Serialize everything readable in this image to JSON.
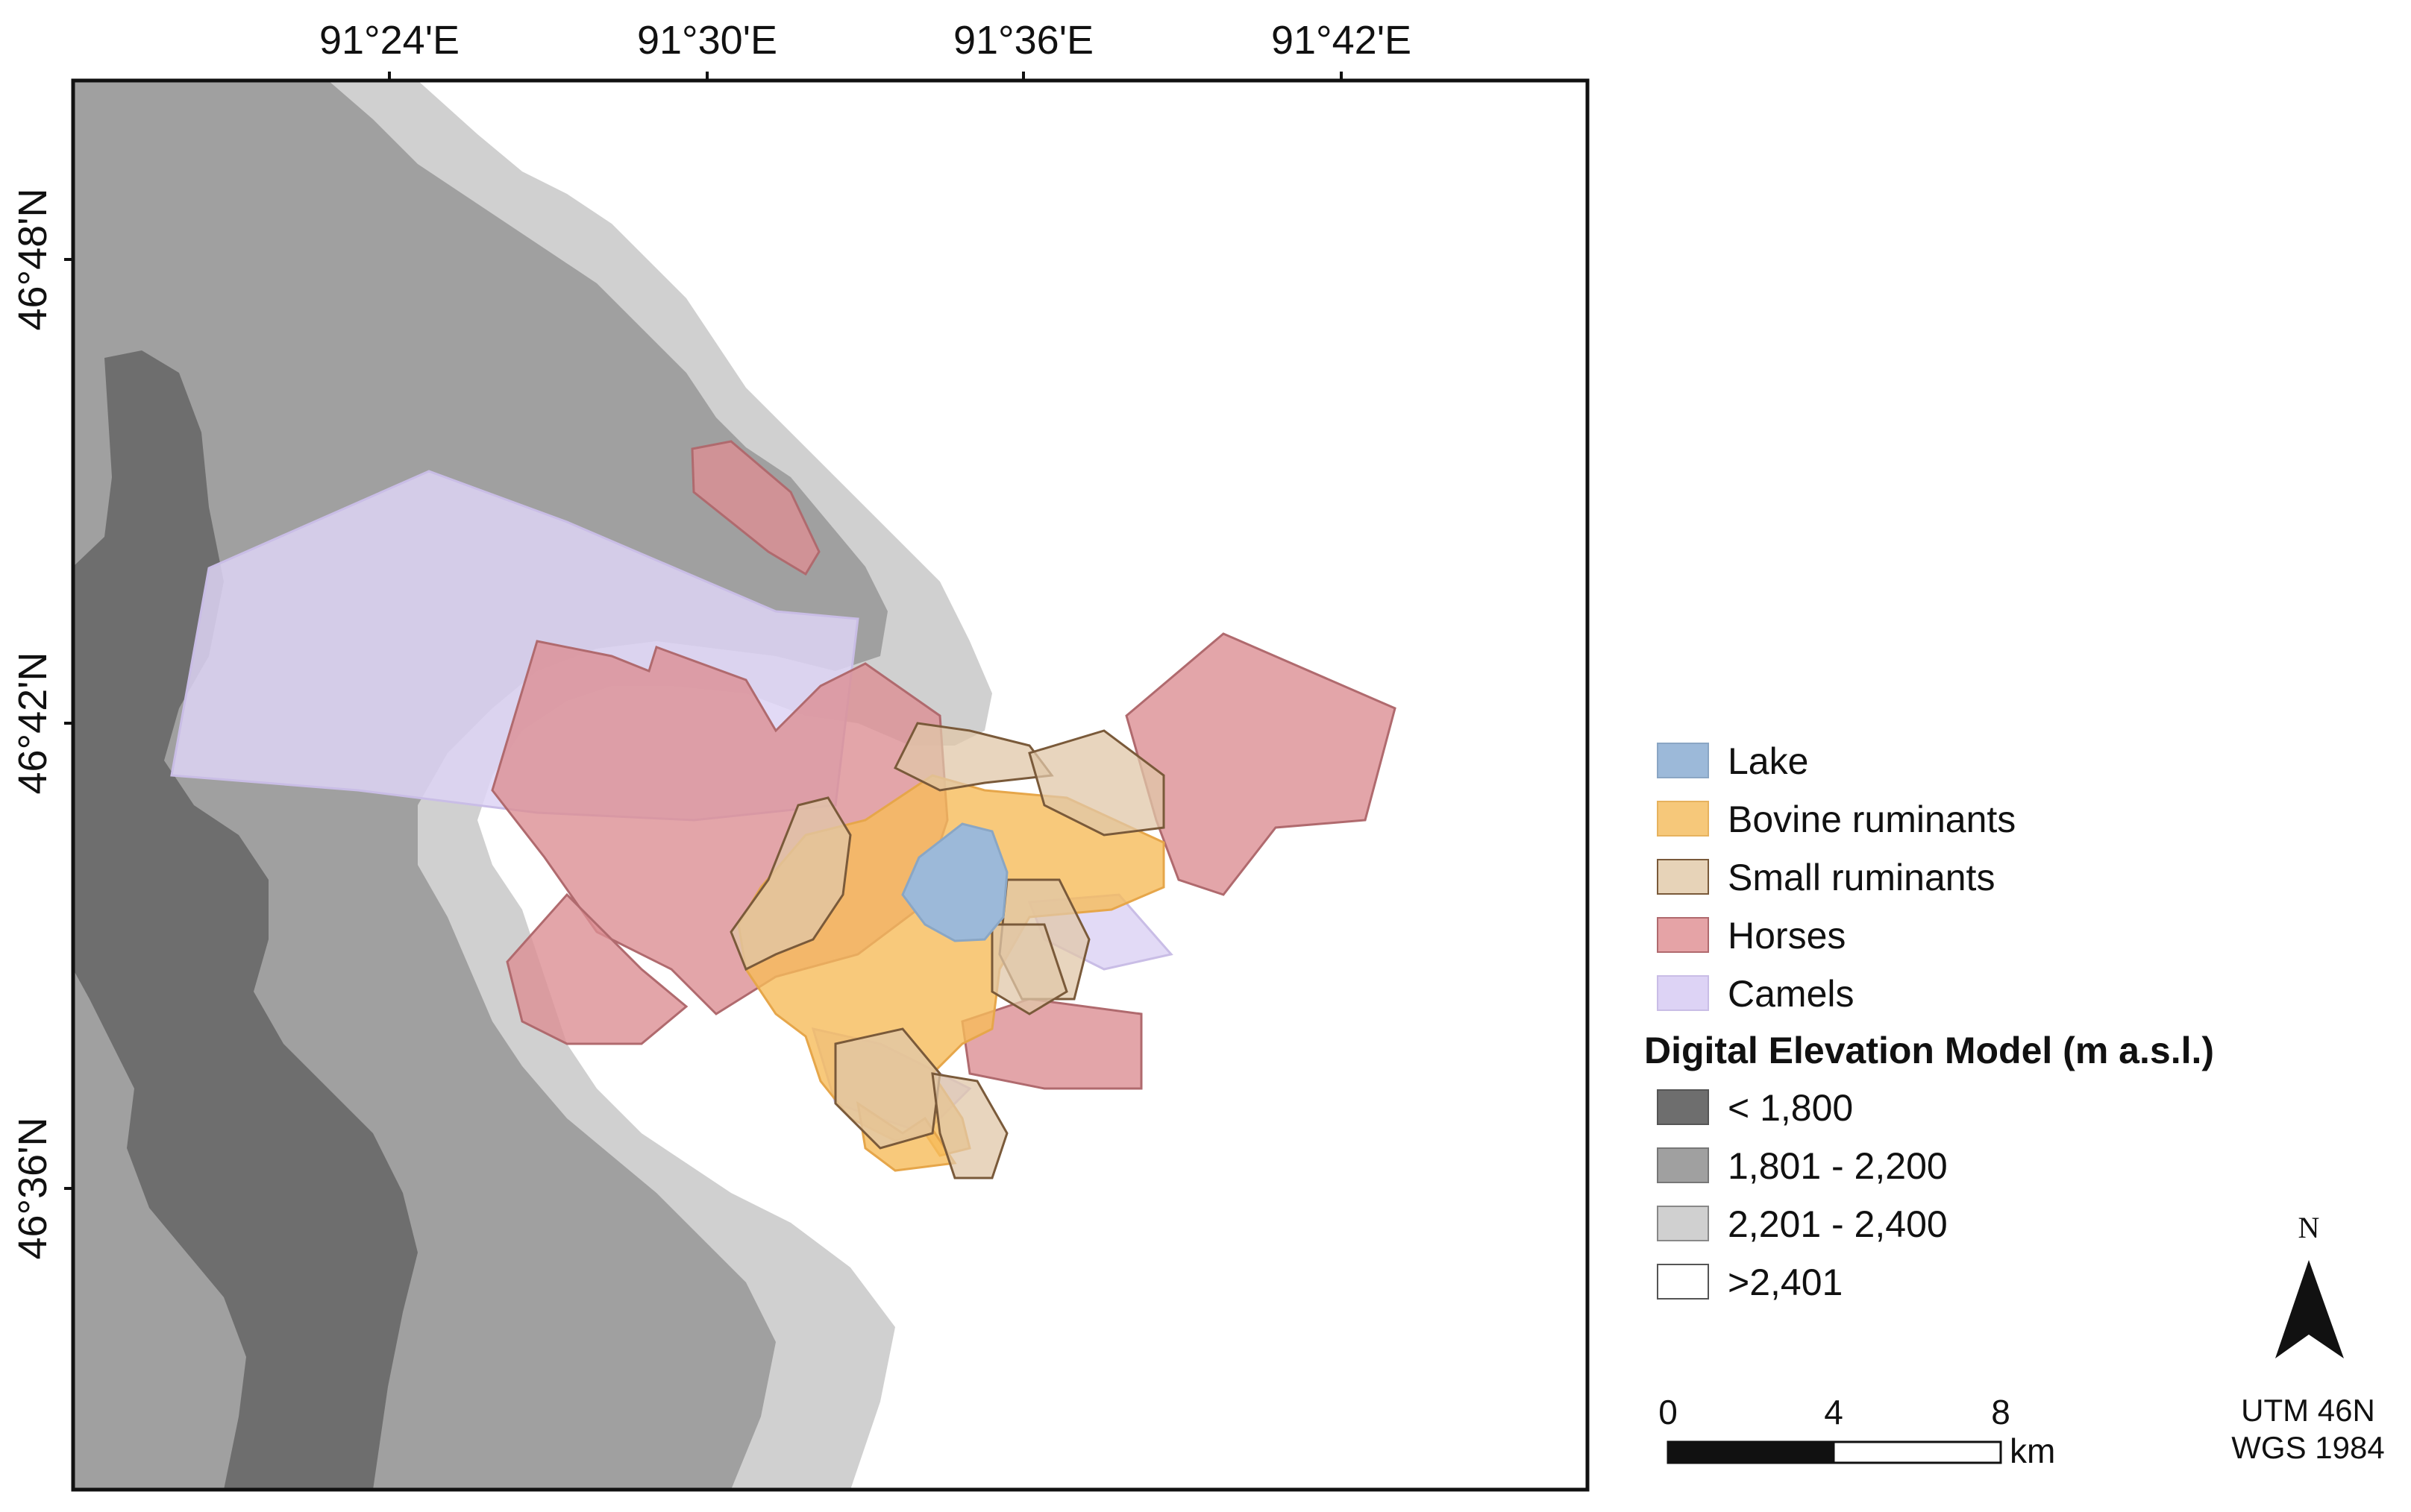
{
  "map": {
    "lon_ticks": [
      "91°24'E",
      "91°30'E",
      "91°36'E",
      "91°42'E"
    ],
    "lat_ticks": [
      "46°48'N",
      "46°42'N",
      "46°36'N"
    ]
  },
  "legend": {
    "items": [
      {
        "label": "Lake",
        "color": "#9cb9d9",
        "border": "#8aa6c4"
      },
      {
        "label": "Bovine ruminants",
        "color": "#f6c87a",
        "border": "#e6b25e"
      },
      {
        "label": "Small ruminants",
        "color": "#e7d3b8",
        "border": "#7a5a3a"
      },
      {
        "label": "Horses",
        "color": "#e5a3a6",
        "border": "#b06a6e"
      },
      {
        "label": "Camels",
        "color": "#ddd3f5",
        "border": "#c9bde6"
      }
    ],
    "dem_title": "Digital Elevation Model (m a.s.l.)",
    "dem_items": [
      {
        "label": "< 1,800",
        "color": "#6e6e6e"
      },
      {
        "label": "1,801 - 2,200",
        "color": "#a0a0a0"
      },
      {
        "label": "2,201 - 2,400",
        "color": "#d0d0d0"
      },
      {
        "label": ">2,401",
        "color": "#ffffff"
      }
    ]
  },
  "scale_bar": {
    "labels": [
      "0",
      "4",
      "8"
    ],
    "unit": "km"
  },
  "north": {
    "label": "N"
  },
  "projection": {
    "line1": "UTM 46N",
    "line2": "WGS 1984"
  }
}
